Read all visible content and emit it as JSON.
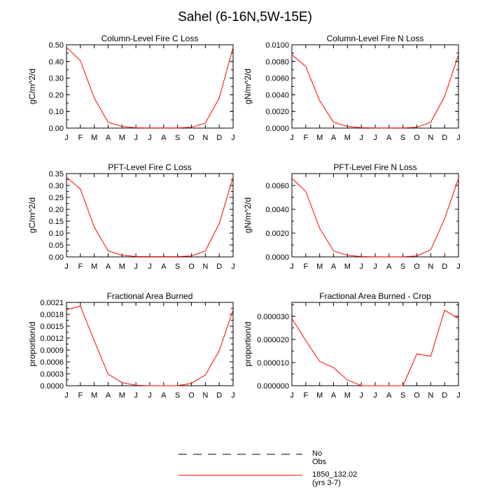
{
  "page_title": "Sahel (6-16N,5W-15E)",
  "colors": {
    "model_line": "#ff0000",
    "obs_line": "#000000",
    "axis": "#000000"
  },
  "legend": {
    "entries": [
      {
        "label": "No Obs",
        "style": "dashed",
        "color": "#000000"
      },
      {
        "label": "1850_132.02 (yrs 3-7)",
        "style": "solid",
        "color": "#ff0000"
      }
    ]
  },
  "chart_data": [
    {
      "type": "line",
      "title": "Column-Level Fire C Loss",
      "xlabel": "",
      "ylabel": "gC/m^2/d",
      "x": [
        "J",
        "F",
        "M",
        "A",
        "M",
        "J",
        "J",
        "A",
        "S",
        "O",
        "N",
        "D",
        "J"
      ],
      "ylim": [
        0,
        0.5
      ],
      "yticks": [
        "0.00",
        "0.10",
        "0.20",
        "0.30",
        "0.40",
        "0.50"
      ],
      "yminor": 0.05,
      "grid": false,
      "series": [
        {
          "name": "1850_132.02 (yrs 3-7)",
          "values": [
            0.485,
            0.405,
            0.18,
            0.035,
            0.01,
            0.002,
            0.001,
            0.001,
            0.001,
            0.005,
            0.03,
            0.18,
            0.485
          ]
        }
      ]
    },
    {
      "type": "line",
      "title": "Column-Level Fire N Loss",
      "xlabel": "",
      "ylabel": "gN/m^2/d",
      "x": [
        "J",
        "F",
        "M",
        "A",
        "M",
        "J",
        "J",
        "A",
        "S",
        "O",
        "N",
        "D",
        "J"
      ],
      "ylim": [
        0,
        0.01
      ],
      "yticks": [
        "0.0000",
        "0.0020",
        "0.0040",
        "0.0060",
        "0.0080",
        "0.0100"
      ],
      "yminor": 0.001,
      "grid": false,
      "series": [
        {
          "name": "1850_132.02 (yrs 3-7)",
          "values": [
            0.0088,
            0.0074,
            0.0033,
            0.0007,
            0.0002,
            5e-05,
            2e-05,
            2e-05,
            2e-05,
            0.0001,
            0.0007,
            0.0038,
            0.0088
          ]
        }
      ]
    },
    {
      "type": "line",
      "title": "PFT-Level Fire C Loss",
      "xlabel": "",
      "ylabel": "gC/m^2/d",
      "x": [
        "J",
        "F",
        "M",
        "A",
        "M",
        "J",
        "J",
        "A",
        "S",
        "O",
        "N",
        "D",
        "J"
      ],
      "ylim": [
        0,
        0.35
      ],
      "yticks": [
        "0.00",
        "0.05",
        "0.10",
        "0.15",
        "0.20",
        "0.25",
        "0.30",
        "0.35"
      ],
      "yminor": 0.025,
      "grid": false,
      "series": [
        {
          "name": "1850_132.02 (yrs 3-7)",
          "values": [
            0.335,
            0.285,
            0.125,
            0.025,
            0.007,
            0.002,
            0.001,
            0.001,
            0.001,
            0.004,
            0.025,
            0.14,
            0.335
          ]
        }
      ]
    },
    {
      "type": "line",
      "title": "PFT-Level Fire N Loss",
      "xlabel": "",
      "ylabel": "gN/m^2/d",
      "x": [
        "J",
        "F",
        "M",
        "A",
        "M",
        "J",
        "J",
        "A",
        "S",
        "O",
        "N",
        "D",
        "J"
      ],
      "ylim": [
        0,
        0.007
      ],
      "yticks": [
        "0.0000",
        "0.0020",
        "0.0040",
        "0.0060"
      ],
      "yminor": 0.001,
      "grid": false,
      "series": [
        {
          "name": "1850_132.02 (yrs 3-7)",
          "values": [
            0.0066,
            0.0055,
            0.0024,
            0.0005,
            0.00013,
            3e-05,
            1e-05,
            1e-05,
            1e-05,
            8e-05,
            0.0006,
            0.0032,
            0.0066
          ]
        }
      ]
    },
    {
      "type": "line",
      "title": "Fractional Area Burned",
      "xlabel": "",
      "ylabel": "proportion/d",
      "x": [
        "J",
        "F",
        "M",
        "A",
        "M",
        "J",
        "J",
        "A",
        "S",
        "O",
        "N",
        "D",
        "J"
      ],
      "ylim": [
        0,
        0.0021
      ],
      "yticks": [
        "0.0000",
        "0.0003",
        "0.0006",
        "0.0009",
        "0.0012",
        "0.0015",
        "0.0018",
        "0.0021"
      ],
      "yminor": 0.00015,
      "grid": false,
      "series": [
        {
          "name": "1850_132.02 (yrs 3-7)",
          "values": [
            0.00191,
            0.00201,
            0.00113,
            0.00029,
            8e-05,
            1e-05,
            0,
            0,
            0,
            6e-05,
            0.00027,
            0.00088,
            0.00191
          ]
        }
      ]
    },
    {
      "type": "line",
      "title": "Fractional Area Burned - Crop",
      "xlabel": "",
      "ylabel": "proportion/d",
      "x": [
        "J",
        "F",
        "M",
        "A",
        "M",
        "J",
        "J",
        "A",
        "S",
        "O",
        "N",
        "D",
        "J"
      ],
      "ylim": [
        0,
        3.6e-05
      ],
      "yticks": [
        "0.000000",
        "0.000010",
        "0.000020",
        "0.000030"
      ],
      "yminor": 5e-06,
      "grid": false,
      "series": [
        {
          "name": "1850_132.02 (yrs 3-7)",
          "values": [
            2.9e-05,
            1.95e-05,
            1.05e-05,
            7.8e-06,
            2.5e-06,
            0,
            0,
            0,
            0,
            1.37e-05,
            1.27e-05,
            3.26e-05,
            2.9e-05
          ]
        }
      ]
    }
  ]
}
